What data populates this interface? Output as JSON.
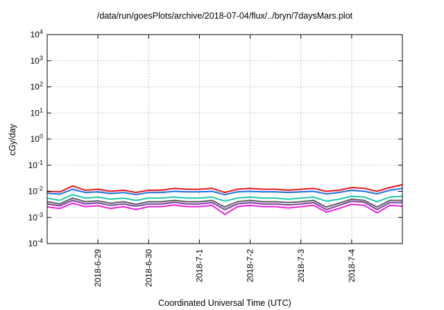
{
  "chart_data": {
    "type": "line",
    "title": "/data/run/goesPlots/archive/2018-07-04/flux/../bryn/7daysMars.plot",
    "xlabel": "Coordinated Universal Time (UTC)",
    "ylabel": "cGy/day",
    "yscale": "log",
    "ylim": [
      0.0001,
      10000
    ],
    "y_ticks": [
      {
        "base": "10",
        "exp": "-4",
        "value": 0.0001
      },
      {
        "base": "10",
        "exp": "-3",
        "value": 0.001
      },
      {
        "base": "10",
        "exp": "-2",
        "value": 0.01
      },
      {
        "base": "10",
        "exp": "-1",
        "value": 0.1
      },
      {
        "base": "10",
        "exp": "0",
        "value": 1
      },
      {
        "base": "10",
        "exp": "1",
        "value": 10
      },
      {
        "base": "10",
        "exp": "2",
        "value": 100
      },
      {
        "base": "10",
        "exp": "3",
        "value": 1000
      },
      {
        "base": "10",
        "exp": "4",
        "value": 10000
      }
    ],
    "xlim": [
      "2018-06-28 00:00",
      "2018-07-04 23:59"
    ],
    "x_ticks": [
      "2018-6-29",
      "2018-6-30",
      "2018-7-1",
      "2018-7-2",
      "2018-7-3",
      "2018-7-4"
    ],
    "grid": true,
    "legend": "none",
    "x": [
      "2018-06-28 00:00",
      "2018-06-28 06:00",
      "2018-06-28 12:00",
      "2018-06-28 18:00",
      "2018-06-29 00:00",
      "2018-06-29 06:00",
      "2018-06-29 12:00",
      "2018-06-29 18:00",
      "2018-06-30 00:00",
      "2018-06-30 06:00",
      "2018-06-30 12:00",
      "2018-06-30 18:00",
      "2018-07-01 00:00",
      "2018-07-01 06:00",
      "2018-07-01 12:00",
      "2018-07-01 18:00",
      "2018-07-02 00:00",
      "2018-07-02 06:00",
      "2018-07-02 12:00",
      "2018-07-02 18:00",
      "2018-07-03 00:00",
      "2018-07-03 06:00",
      "2018-07-03 12:00",
      "2018-07-03 18:00",
      "2018-07-04 00:00",
      "2018-07-04 06:00",
      "2018-07-04 12:00",
      "2018-07-04 18:00",
      "2018-07-04 23:59"
    ],
    "series": [
      {
        "color": "#e8141c",
        "values": [
          0.01,
          0.0095,
          0.016,
          0.011,
          0.012,
          0.01,
          0.011,
          0.009,
          0.011,
          0.011,
          0.013,
          0.012,
          0.012,
          0.013,
          0.009,
          0.012,
          0.013,
          0.012,
          0.012,
          0.011,
          0.012,
          0.013,
          0.01,
          0.011,
          0.014,
          0.013,
          0.01,
          0.014,
          0.018
        ]
      },
      {
        "color": "#1a6fe8",
        "values": [
          0.0085,
          0.0078,
          0.012,
          0.009,
          0.0095,
          0.0082,
          0.009,
          0.0075,
          0.009,
          0.009,
          0.01,
          0.0095,
          0.0095,
          0.01,
          0.0075,
          0.0095,
          0.01,
          0.0095,
          0.0095,
          0.009,
          0.0095,
          0.01,
          0.008,
          0.009,
          0.011,
          0.01,
          0.008,
          0.011,
          0.013
        ]
      },
      {
        "color": "#1cc8a8",
        "values": [
          0.0055,
          0.0045,
          0.0075,
          0.0055,
          0.006,
          0.005,
          0.0055,
          0.0045,
          0.0055,
          0.0055,
          0.006,
          0.0055,
          0.0055,
          0.006,
          0.0042,
          0.0055,
          0.006,
          0.0055,
          0.0055,
          0.005,
          0.0055,
          0.006,
          0.0042,
          0.005,
          0.0065,
          0.006,
          0.004,
          0.006,
          0.0065
        ]
      },
      {
        "color": "#5a5a5a",
        "values": [
          0.004,
          0.0033,
          0.0055,
          0.004,
          0.0043,
          0.0035,
          0.004,
          0.0032,
          0.004,
          0.004,
          0.0045,
          0.004,
          0.004,
          0.0045,
          0.0025,
          0.004,
          0.0045,
          0.004,
          0.004,
          0.0037,
          0.004,
          0.0045,
          0.0025,
          0.0035,
          0.005,
          0.0045,
          0.0025,
          0.0045,
          0.0045
        ]
      },
      {
        "color": "#7a3ca8",
        "values": [
          0.0033,
          0.0028,
          0.0045,
          0.0033,
          0.0036,
          0.0029,
          0.0033,
          0.0027,
          0.0033,
          0.0033,
          0.0038,
          0.0033,
          0.0033,
          0.0037,
          0.002,
          0.0033,
          0.0037,
          0.0033,
          0.0033,
          0.003,
          0.0033,
          0.0037,
          0.002,
          0.0029,
          0.0042,
          0.0038,
          0.002,
          0.0037,
          0.0037
        ]
      },
      {
        "color": "#f01ee0",
        "values": [
          0.0025,
          0.0022,
          0.0035,
          0.0026,
          0.0028,
          0.0022,
          0.0026,
          0.002,
          0.0026,
          0.0026,
          0.003,
          0.0026,
          0.0026,
          0.0029,
          0.0013,
          0.0026,
          0.0029,
          0.0026,
          0.0026,
          0.0023,
          0.0026,
          0.0029,
          0.0016,
          0.0022,
          0.0032,
          0.0029,
          0.0015,
          0.0029,
          0.0027
        ]
      }
    ]
  }
}
